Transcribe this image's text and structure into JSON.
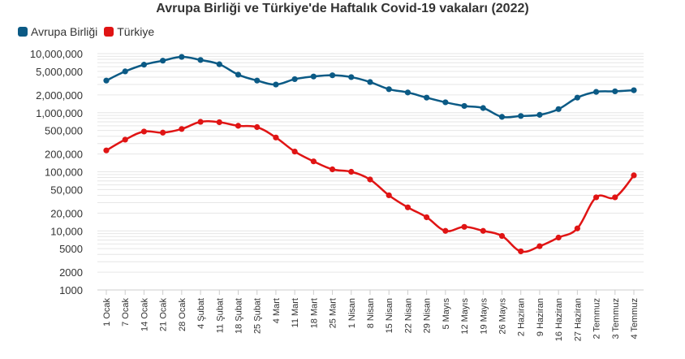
{
  "chart_data": {
    "type": "line",
    "title": "Avrupa Birliği ve Türkiye'de Haftalık Covid-19 vakaları (2022)",
    "xlabel": "",
    "ylabel": "",
    "yscale": "log",
    "ylim": [
      1000,
      10000000
    ],
    "yticks": [
      1000,
      2000,
      5000,
      10000,
      20000,
      50000,
      100000,
      200000,
      500000,
      1000000,
      2000000,
      5000000,
      10000000
    ],
    "ytick_labels": [
      "1000",
      "2000",
      "5000",
      "10,000",
      "20,000",
      "50,000",
      "100,000",
      "200,000",
      "500,000",
      "1,000,000",
      "2,000,000",
      "5,000,000",
      "10,000,000"
    ],
    "grid": true,
    "legend_position": "top-left",
    "categories": [
      "1 Ocak",
      "7 Ocak",
      "14 Ocak",
      "21 Ocak",
      "28 Ocak",
      "4 Şubat",
      "11 Şubat",
      "18 Şubat",
      "25 Şubat",
      "4 Mart",
      "11 Mart",
      "18 Mart",
      "25 Mart",
      "1 Nisan",
      "8 Nisan",
      "15 Nisan",
      "22 Nisan",
      "29 Nisan",
      "5 Mayıs",
      "12 Mayıs",
      "19 Mayıs",
      "26 Mayıs",
      "2 Haziran",
      "9 Haziran",
      "16 Haziran",
      "27 Haziran",
      "2 Temmuz",
      "3 Temmuz",
      "4 Temmuz"
    ],
    "series": [
      {
        "name": "Avrupa Birliği",
        "color": "#0b5a85",
        "values": [
          3500000,
          5000000,
          6500000,
          7600000,
          8800000,
          7800000,
          6600000,
          4400000,
          3500000,
          3000000,
          3700000,
          4100000,
          4300000,
          4000000,
          3300000,
          2500000,
          2200000,
          1800000,
          1500000,
          1300000,
          1200000,
          850000,
          880000,
          920000,
          1150000,
          1800000,
          2250000,
          2300000,
          2400000
        ]
      },
      {
        "name": "Türkiye",
        "color": "#e01414",
        "values": [
          230000,
          350000,
          480000,
          460000,
          530000,
          700000,
          690000,
          600000,
          570000,
          380000,
          220000,
          150000,
          110000,
          100000,
          74000,
          40000,
          25000,
          17000,
          10000,
          11700,
          10000,
          8200,
          4500,
          5500,
          7700,
          11000,
          37000,
          37000,
          87000
        ]
      }
    ]
  }
}
